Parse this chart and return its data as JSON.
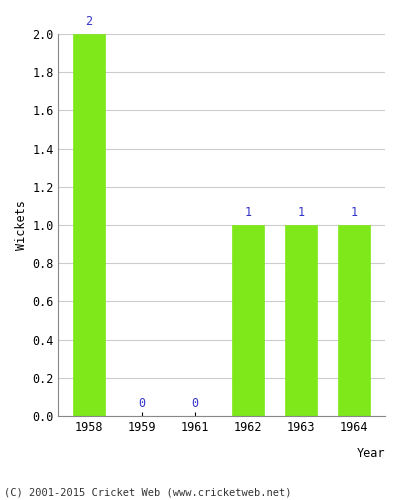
{
  "years": [
    "1958",
    "1959",
    "1961",
    "1962",
    "1963",
    "1964"
  ],
  "values": [
    2,
    0,
    0,
    1,
    1,
    1
  ],
  "bar_color": "#7FE81A",
  "bar_edge_color": "#7FE81A",
  "label_color": "#3333CC",
  "ylabel": "Wickets",
  "xlabel": "Year",
  "ylim": [
    0,
    2.0
  ],
  "yticks": [
    0.0,
    0.2,
    0.4,
    0.6,
    0.8,
    1.0,
    1.2,
    1.4,
    1.6,
    1.8,
    2.0
  ],
  "grid_color": "#cccccc",
  "background_color": "#ffffff",
  "footer": "(C) 2001-2015 Cricket Web (www.cricketweb.net)",
  "label_fontsize": 8.5,
  "axis_fontsize": 8.5,
  "footer_fontsize": 7.5,
  "xlabel_fontsize": 8.5
}
